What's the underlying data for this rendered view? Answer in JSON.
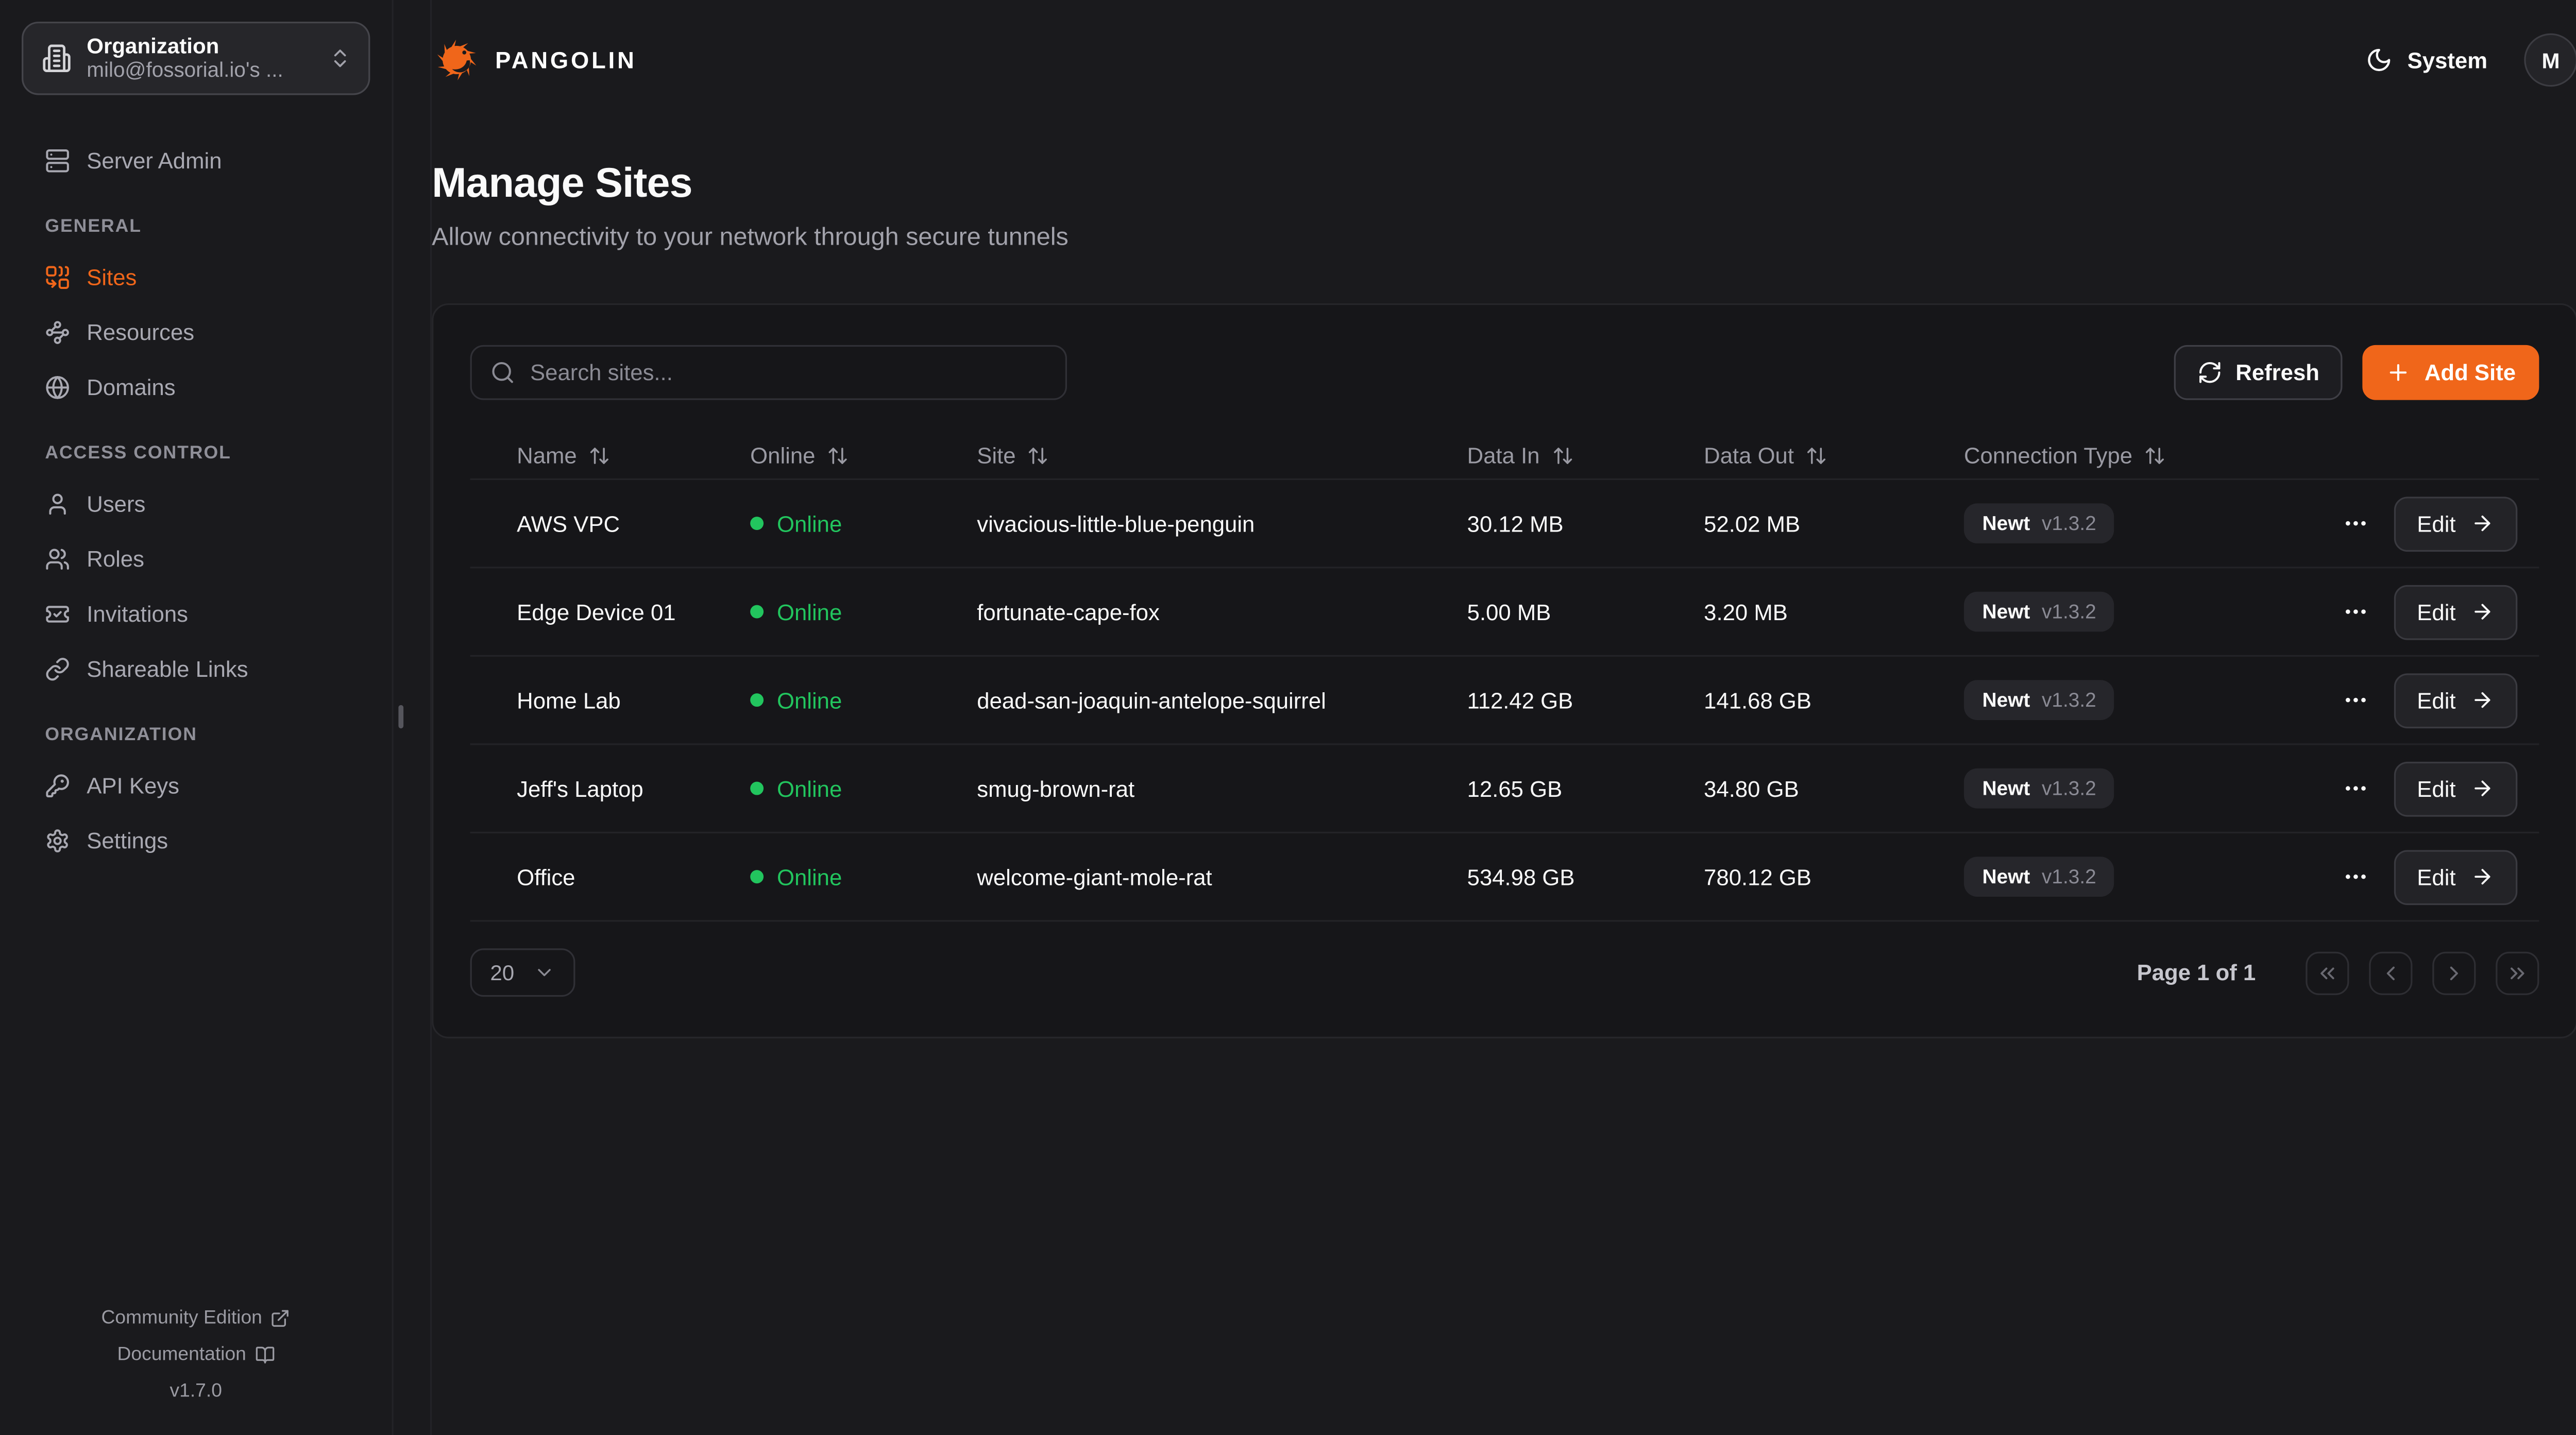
{
  "colors": {
    "accent": "#f0661a",
    "online_green": "#22c55e",
    "background": "#1a1a1d",
    "card": "#161619"
  },
  "brand": {
    "name": "PANGOLIN",
    "logo_icon": "pangolin-logo"
  },
  "topbar": {
    "theme_icon": "moon-icon",
    "theme_label": "System",
    "avatar_initial": "M"
  },
  "sidebar": {
    "org_selector": {
      "icon": "building-icon",
      "label": "Organization",
      "value": "milo@fossorial.io's ...",
      "chevron_icon": "chevrons-up-down-icon"
    },
    "server_admin": {
      "icon": "server-icon",
      "label": "Server Admin"
    },
    "sections": [
      {
        "heading": "GENERAL",
        "items": [
          {
            "label": "Sites",
            "icon": "combine-icon",
            "active": true
          },
          {
            "label": "Resources",
            "icon": "waypoints-icon",
            "active": false
          },
          {
            "label": "Domains",
            "icon": "globe-icon",
            "active": false
          }
        ]
      },
      {
        "heading": "ACCESS CONTROL",
        "items": [
          {
            "label": "Users",
            "icon": "user-icon",
            "active": false
          },
          {
            "label": "Roles",
            "icon": "users-icon",
            "active": false
          },
          {
            "label": "Invitations",
            "icon": "ticket-icon",
            "active": false
          },
          {
            "label": "Shareable Links",
            "icon": "link-icon",
            "active": false
          }
        ]
      },
      {
        "heading": "ORGANIZATION",
        "items": [
          {
            "label": "API Keys",
            "icon": "key-icon",
            "active": false
          },
          {
            "label": "Settings",
            "icon": "gear-icon",
            "active": false
          }
        ]
      }
    ],
    "footer": {
      "community": "Community Edition",
      "community_icon": "external-link-icon",
      "documentation": "Documentation",
      "documentation_icon": "book-open-icon",
      "version": "v1.7.0"
    }
  },
  "page": {
    "title": "Manage Sites",
    "subtitle": "Allow connectivity to your network through secure tunnels"
  },
  "toolbar": {
    "search_placeholder": "Search sites...",
    "search_icon": "search-icon",
    "refresh_label": "Refresh",
    "refresh_icon": "refresh-icon",
    "add_site_label": "Add Site",
    "add_icon": "plus-icon"
  },
  "table": {
    "columns": [
      "Name",
      "Online",
      "Site",
      "Data In",
      "Data Out",
      "Connection Type"
    ],
    "sort_icon": "arrow-up-down-icon",
    "row_actions": {
      "menu_icon": "ellipsis-icon",
      "edit_label": "Edit",
      "edit_icon": "arrow-right-icon"
    },
    "rows": [
      {
        "name": "AWS VPC",
        "status": "Online",
        "site": "vivacious-little-blue-penguin",
        "data_in": "30.12 MB",
        "data_out": "52.02 MB",
        "conn_type": "Newt",
        "conn_version": "v1.3.2"
      },
      {
        "name": "Edge Device 01",
        "status": "Online",
        "site": "fortunate-cape-fox",
        "data_in": "5.00 MB",
        "data_out": "3.20 MB",
        "conn_type": "Newt",
        "conn_version": "v1.3.2"
      },
      {
        "name": "Home Lab",
        "status": "Online",
        "site": "dead-san-joaquin-antelope-squirrel",
        "data_in": "112.42 GB",
        "data_out": "141.68 GB",
        "conn_type": "Newt",
        "conn_version": "v1.3.2"
      },
      {
        "name": "Jeff's Laptop",
        "status": "Online",
        "site": "smug-brown-rat",
        "data_in": "12.65 GB",
        "data_out": "34.80 GB",
        "conn_type": "Newt",
        "conn_version": "v1.3.2"
      },
      {
        "name": "Office",
        "status": "Online",
        "site": "welcome-giant-mole-rat",
        "data_in": "534.98 GB",
        "data_out": "780.12 GB",
        "conn_type": "Newt",
        "conn_version": "v1.3.2"
      }
    ]
  },
  "pagination": {
    "page_size": "20",
    "status": "Page 1 of 1",
    "buttons": [
      "chevrons-left-icon",
      "chevron-left-icon",
      "chevron-right-icon",
      "chevrons-right-icon"
    ]
  }
}
